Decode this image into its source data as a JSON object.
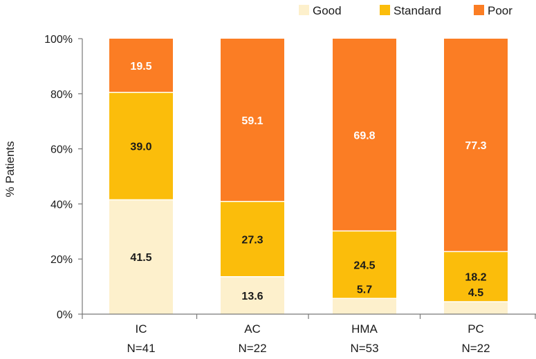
{
  "chart_data": {
    "type": "bar",
    "stacked": true,
    "title": "",
    "xlabel": "",
    "ylabel": "% Patients",
    "ylim": [
      0,
      100
    ],
    "yticks": [
      "0%",
      "20%",
      "40%",
      "60%",
      "80%",
      "100%"
    ],
    "categories": [
      "IC",
      "AC",
      "HMA",
      "PC"
    ],
    "category_counts": [
      "N=41",
      "N=22",
      "N=53",
      "N=22"
    ],
    "series": [
      {
        "name": "Good",
        "color": "#fdf0cc",
        "label_color": "#1a1a1a",
        "values": [
          41.5,
          13.6,
          5.7,
          4.5
        ]
      },
      {
        "name": "Standard",
        "color": "#fbbd0b",
        "label_color": "#1a1a1a",
        "values": [
          39.0,
          27.3,
          24.5,
          18.2
        ]
      },
      {
        "name": "Poor",
        "color": "#fb7d24",
        "label_color": "#ffffff",
        "values": [
          19.5,
          59.1,
          69.8,
          77.3
        ]
      }
    ],
    "value_labels": [
      [
        "41.5",
        "13.6",
        "5.7",
        "4.5"
      ],
      [
        "39.0",
        "27.3",
        "24.5",
        "18.2"
      ],
      [
        "19.5",
        "59.1",
        "69.8",
        "77.3"
      ]
    ],
    "legend_position": "top-right",
    "grid": false
  }
}
